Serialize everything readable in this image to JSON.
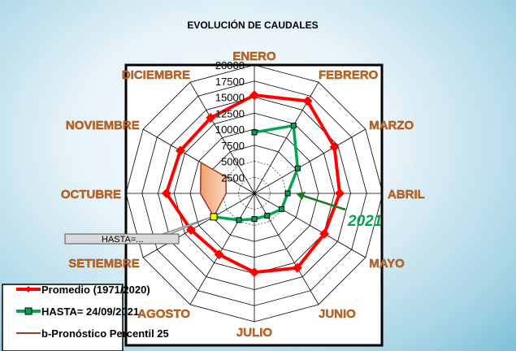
{
  "chart_data": {
    "type": "radar",
    "title": "EVOLUCIÓN DE CAUDALES",
    "categories": [
      "ENERO",
      "FEBRERO",
      "MARZO",
      "ABRIL",
      "MAYO",
      "JUNIO",
      "JULIO",
      "AGOSTO",
      "SETIEMBRE",
      "OCTUBRE",
      "NOVIEMBRE",
      "DICIEMBRE"
    ],
    "rlim": [
      0,
      20000
    ],
    "ticks": [
      "2500",
      "5000",
      "7500",
      "10000",
      "12500",
      "15000",
      "17500",
      "20000"
    ],
    "grid": true,
    "legend_position": "bottom-left",
    "series": [
      {
        "name": "Promedio (1971/2020)",
        "color": "#ff0000",
        "marker": "diamond",
        "values": [
          15300,
          16600,
          14400,
          13300,
          12600,
          13400,
          12300,
          11000,
          11400,
          13700,
          13300,
          13600
        ]
      },
      {
        "name": "HASTA= 24/09/2021",
        "color": "#00a651",
        "marker": "square",
        "values": [
          9500,
          12200,
          7800,
          5200,
          4900,
          4000,
          4000,
          4800,
          7300,
          null,
          null,
          null
        ]
      },
      {
        "name": "b-Pronóstico Percentil 25",
        "color": "#9b3b2a",
        "type": "area",
        "upper": [
          null,
          null,
          null,
          null,
          null,
          null,
          null,
          4800,
          7300,
          8400,
          9600,
          null
        ],
        "lower": [
          null,
          null,
          null,
          null,
          null,
          null,
          null,
          4800,
          7300,
          4400,
          5100,
          null
        ]
      }
    ],
    "annotations": {
      "year": "2021",
      "callout": "HASTA=..."
    }
  },
  "colors": {
    "label": "#c8661e",
    "year": "#00a651",
    "highlight": "#ffff00"
  }
}
